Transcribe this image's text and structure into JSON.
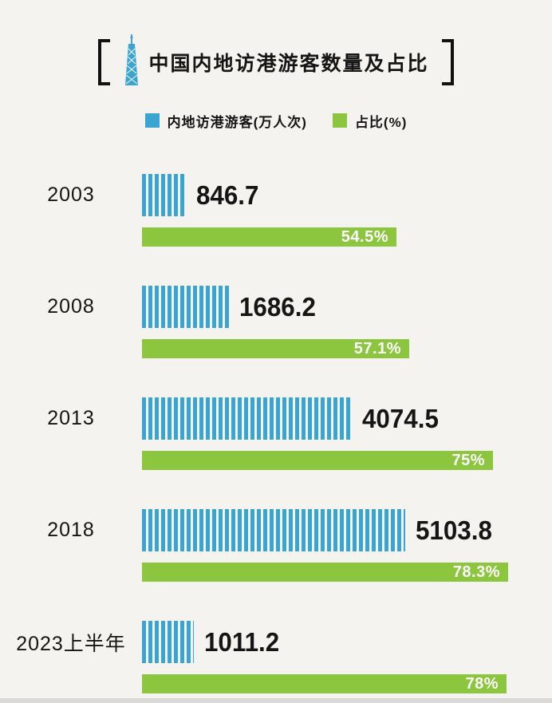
{
  "header": {
    "title": "中国内地访港游客数量及占比"
  },
  "legend": {
    "visitors_label": "内地访港游客(万人次)",
    "share_label": "占比(%)"
  },
  "colors": {
    "blue": "#3aa5d0",
    "green": "#8cc63e",
    "background": "#f5f3ef",
    "text": "#151515"
  },
  "chart_data": {
    "type": "bar",
    "title": "中国内地访港游客数量及占比",
    "categories": [
      "2003",
      "2008",
      "2013",
      "2018",
      "2023上半年"
    ],
    "series": [
      {
        "name": "内地访港游客(万人次)",
        "values": [
          846.7,
          1686.2,
          4074.5,
          5103.8,
          1011.2
        ]
      },
      {
        "name": "占比(%)",
        "values": [
          54.5,
          57.1,
          75,
          78.3,
          78
        ]
      }
    ],
    "value_labels": [
      "846.7",
      "1686.2",
      "4074.5",
      "5103.8",
      "1011.2"
    ],
    "share_labels": [
      "54.5%",
      "57.1%",
      "75%",
      "78.3%",
      "78%"
    ],
    "legend_position": "top",
    "grid": false,
    "orientation": "horizontal"
  }
}
